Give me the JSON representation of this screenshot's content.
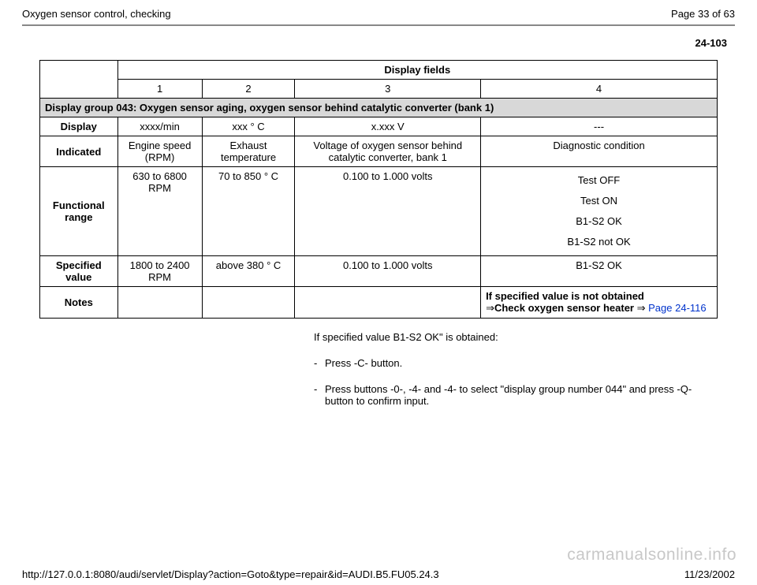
{
  "header": {
    "title": "Oxygen sensor control, checking",
    "page_label": "Page 33 of 63"
  },
  "section_number": "24-103",
  "table": {
    "display_fields_label": "Display fields",
    "col_nums": [
      "1",
      "2",
      "3",
      "4"
    ],
    "group_row": "Display group 043: Oxygen sensor aging, oxygen sensor behind catalytic converter (bank 1)",
    "rows": {
      "display": {
        "label": "Display",
        "c1": "xxxx/min",
        "c2": "xxx  ° C",
        "c3": "x.xxx V",
        "c4": "---"
      },
      "indicated": {
        "label": "Indicated",
        "c1": "Engine speed (RPM)",
        "c2": "Exhaust temperature",
        "c3": "Voltage of oxygen sensor behind catalytic converter, bank 1",
        "c4": "Diagnostic condition"
      },
      "functional_range": {
        "label": "Functional range",
        "c1": "630 to 6800 RPM",
        "c2": "70 to 850  ° C",
        "c3": "0.100 to 1.000 volts",
        "c4_lines": [
          "Test OFF",
          "Test ON",
          "B1-S2 OK",
          "B1-S2 not OK"
        ]
      },
      "specified_value": {
        "label": "Specified value",
        "c1": "1800 to 2400 RPM",
        "c2": "above 380  ° C",
        "c3": "0.100 to 1.000 volts",
        "c4": "B1-S2 OK"
      },
      "notes": {
        "label": "Notes",
        "c4_bold1": "If specified value is not obtained",
        "c4_bold2": "Check oxygen sensor heater ",
        "c4_link": "Page 24-116"
      }
    }
  },
  "below": {
    "obtained": "If specified value B1-S2 OK\" is obtained:",
    "step1": "Press -C- button.",
    "step2": "Press buttons -0-, -4- and -4- to select \"display group number 044\" and press -Q- button to confirm input."
  },
  "footer": {
    "url": "http://127.0.0.1:8080/audi/servlet/Display?action=Goto&type=repair&id=AUDI.B5.FU05.24.3",
    "date": "11/23/2002"
  },
  "watermark": "carmanualsonline.info"
}
